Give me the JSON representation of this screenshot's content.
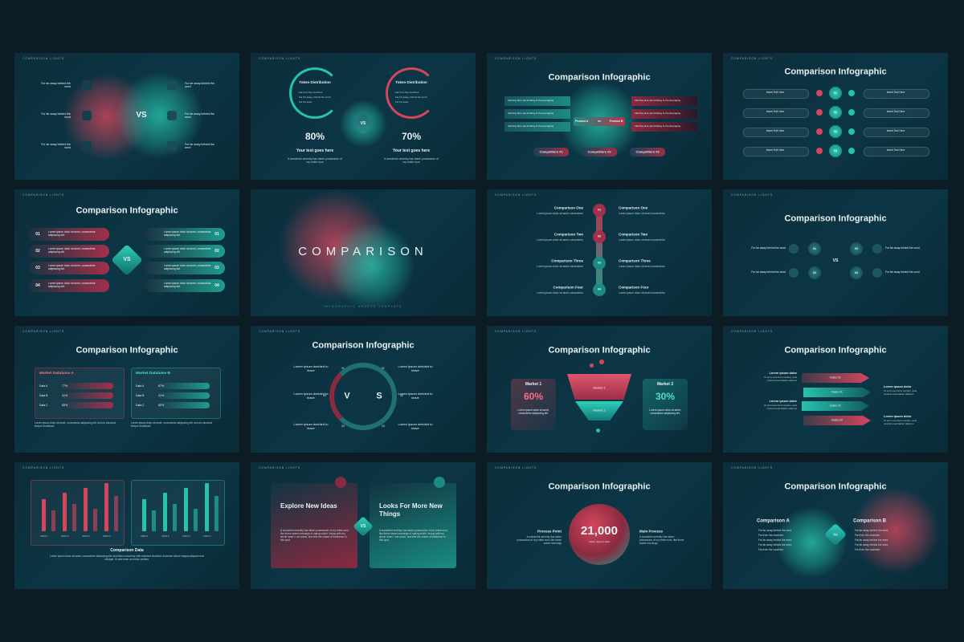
{
  "label": "COMPARISON LIGHTS",
  "slides": [
    {
      "vs": "VS",
      "items": [
        "For far away behind the word",
        "For far away behind the word",
        "For far away behind the word",
        "For far away behind the word",
        "For far away behind the word",
        "For far away behind the word"
      ]
    },
    {
      "vs": "VS",
      "cards": [
        {
          "title": "Token Distribution",
          "bullets": [
            "Far from the countries",
            "Far far away, behind the word",
            "Far far away"
          ],
          "percent": "80%",
          "heading": "Your text goes here",
          "body": "A wonderful serenity has taken possession of my entire soul"
        },
        {
          "title": "Token Distribution",
          "bullets": [
            "Far from the countries",
            "Far far away, behind the word",
            "Far far away"
          ],
          "percent": "70%",
          "heading": "Your text goes here",
          "body": "A wonderful serenity has taken possession of my entire soul"
        }
      ]
    },
    {
      "title": "Comparison Infographic",
      "notes": [
        "Inferring blue sky thinking to the leveraging",
        "Inferring blue sky thinking to the leveraging",
        "Inferring blue sky thinking to the leveraging",
        "Inferring blue sky thinking to the leveraging",
        "Inferring blue sky thinking to the leveraging",
        "Inferring blue sky thinking to the leveraging"
      ],
      "product_a": "Product A",
      "vs": "vs",
      "product_b": "Product B",
      "competitors": [
        "Competitors #1",
        "Competitors #2",
        "Competitors #3"
      ]
    },
    {
      "title": "Comparison Infographic",
      "items": [
        "Insert Text Here",
        "Insert Text Here",
        "Insert Text Here",
        "Insert Text Here",
        "Insert Text Here",
        "Insert Text Here",
        "Insert Text Here",
        "Insert Text Here"
      ],
      "numbers": [
        "01",
        "02",
        "03",
        "04"
      ]
    },
    {
      "title": "Comparison Infographic",
      "vs": "VS",
      "left": [
        {
          "number": "01",
          "text": "Lorem ipsum dolor sit amet, consectetur adipiscing elit."
        },
        {
          "number": "02",
          "text": "Lorem ipsum dolor sit amet, consectetur adipiscing elit."
        },
        {
          "number": "03",
          "text": "Lorem ipsum dolor sit amet, consectetur adipiscing elit."
        },
        {
          "number": "04",
          "text": "Lorem ipsum dolor sit amet, consectetur adipiscing elit."
        }
      ],
      "right": [
        {
          "number": "01",
          "text": "Lorem ipsum dolor sit amet, consectetur adipiscing elit."
        },
        {
          "number": "02",
          "text": "Lorem ipsum dolor sit amet, consectetur adipiscing elit."
        },
        {
          "number": "03",
          "text": "Lorem ipsum dolor sit amet, consectetur adipiscing elit."
        },
        {
          "number": "04",
          "text": "Lorem ipsum dolor sit amet, consectetur adipiscing elit."
        }
      ]
    },
    {
      "title": "COMPARISON",
      "subtitle": "INFOGRAPHIC ASSETS TEMPLATE"
    },
    {
      "rows": [
        {
          "number": "01",
          "left_title": "Comparison One",
          "left_text": "Lorem ipsum dolor sit amet consectetur",
          "right_title": "Comparison One",
          "right_text": "Lorem ipsum dolor sit amet consectetur"
        },
        {
          "number": "02",
          "left_title": "Comparison Two",
          "left_text": "Lorem ipsum dolor sit amet consectetur",
          "right_title": "Comparison Two",
          "right_text": "Lorem ipsum dolor sit amet consectetur"
        },
        {
          "number": "03",
          "left_title": "Comparison Three",
          "left_text": "Lorem ipsum dolor sit amet consectetur",
          "right_title": "Comparison Three",
          "right_text": "Lorem ipsum dolor sit amet consectetur"
        },
        {
          "number": "04",
          "left_title": "Comparison Four",
          "left_text": "Lorem ipsum dolor sit amet consectetur",
          "right_title": "Comparison Four",
          "right_text": "Lorem ipsum dolor sit amet consectetur"
        }
      ]
    },
    {
      "title": "Comparison Infographic",
      "vs": "VS",
      "left": [
        "For far away behind the word",
        "For far away behind the word"
      ],
      "right": [
        "For far away behind the word",
        "For far away behind the word"
      ],
      "numbers": [
        "01",
        "02",
        "03",
        "04"
      ]
    },
    {
      "title": "Comparison Infographic",
      "panels": [
        {
          "title": "Market Database A",
          "rows": [
            {
              "label": "Data A",
              "value": "77%"
            },
            {
              "label": "Data B",
              "value": "41%"
            },
            {
              "label": "Data C",
              "value": "65%"
            }
          ]
        },
        {
          "title": "Market Database B",
          "rows": [
            {
              "label": "Data A",
              "value": "67%"
            },
            {
              "label": "Data B",
              "value": "41%"
            },
            {
              "label": "Data C",
              "value": "60%"
            }
          ]
        }
      ],
      "notes": [
        "Lorem ipsum dolor sit amet, consectetur adipiscing elit, sed do eiusmod tempor incididunt.",
        "Lorem ipsum dolor sit amet, consectetur adipiscing elit, sed do eiusmod tempor incididunt."
      ]
    },
    {
      "title": "Comparison Infographic",
      "v": "V",
      "s": "S",
      "items": [
        {
          "number": "01",
          "text": "Lorem Ipsum decided to leave"
        },
        {
          "number": "02",
          "text": "Lorem Ipsum decided to leave"
        },
        {
          "number": "03",
          "text": "Lorem Ipsum decided to leave"
        },
        {
          "number": "01",
          "text": "Lorem Ipsum decided to leave"
        },
        {
          "number": "02",
          "text": "Lorem Ipsum decided to leave"
        },
        {
          "number": "03",
          "text": "Lorem Ipsum decided to leave"
        }
      ]
    },
    {
      "title": "Comparison Infographic",
      "markets": [
        {
          "name": "Market 1",
          "percent": "60%",
          "body": "Lorem ipsum dolor sit amet, consectetur adipiscing elit."
        },
        {
          "name": "Market 2",
          "percent": "30%",
          "body": "Lorem ipsum dolor sit amet, consectetur adipiscing elit."
        }
      ],
      "funnel": [
        "Market 1",
        "Market 2"
      ]
    },
    {
      "title": "Comparison Infographic",
      "blocks": [
        {
          "title": "Lorem ipsum dolor",
          "body": "Ut enim ad minim veniam, quis nostrud exercitation ullamco"
        },
        {
          "title": "Lorem ipsum dolor",
          "body": "Ut enim ad minim veniam, quis nostrud exercitation ullamco"
        },
        {
          "title": "Lorem ipsum dolor",
          "body": "Ut enim ad minim veniam, quis nostrud exercitation ullamco"
        },
        {
          "title": "Lorem ipsum dolor",
          "body": "Ut enim ad minim veniam, quis nostrud exercitation ullamco"
        }
      ],
      "arrows": [
        "Data 01",
        "Data 01",
        "Data 02",
        "Data 02"
      ]
    },
    {
      "title": "Comparison Data",
      "axis": [
        "DATA 1",
        "DATA 2",
        "DATA 3",
        "DATA 4"
      ],
      "body": "Lorem ipsum dolor sit amet, consectetur adipiscing elit, sed diam nonummy nibh euismod tincidunt ut laoreet dolore magna aliquam erat volutpat. Ut wisi enim ad minim veniam."
    },
    {
      "vs": "VS",
      "cards": [
        {
          "title": "Explore New Ideas",
          "body": "A wonderful serenity has taken possession of my entire soul, like these sweet mornings of spring which I enjoy with my whole heart. I am alone, and feel the charm of existence in this spot."
        },
        {
          "title": "Looks For More New Things",
          "body": "A wonderful serenity has taken possession of my entire soul, like these sweet mornings of spring which I enjoy with my whole heart. I am alone, and feel the charm of existence in this spot."
        }
      ]
    },
    {
      "title": "Comparison Infographic",
      "value": "21,000",
      "caption": "Active users in here",
      "left": {
        "title": "Process Point",
        "body": "A wonderful serenity has taken possession of my entire soul, like these sweet mornings"
      },
      "right": {
        "title": "Main Process",
        "body": "A wonderful serenity has taken possession of my entire soul, like these sweet mornings"
      }
    },
    {
      "title": "Comparison Infographic",
      "vs": "Vs",
      "left": {
        "title": "Comparison A",
        "bullets": [
          "Far far away behind the word",
          "Far from the countries",
          "Far far away behind the word",
          "Far far away behind the word",
          "Far from the countries"
        ]
      },
      "right": {
        "title": "Comparison B",
        "bullets": [
          "Far far away behind the word",
          "Far from the countries",
          "Far far away behind the word",
          "Far far away behind the word",
          "Far from the countries"
        ]
      }
    }
  ]
}
